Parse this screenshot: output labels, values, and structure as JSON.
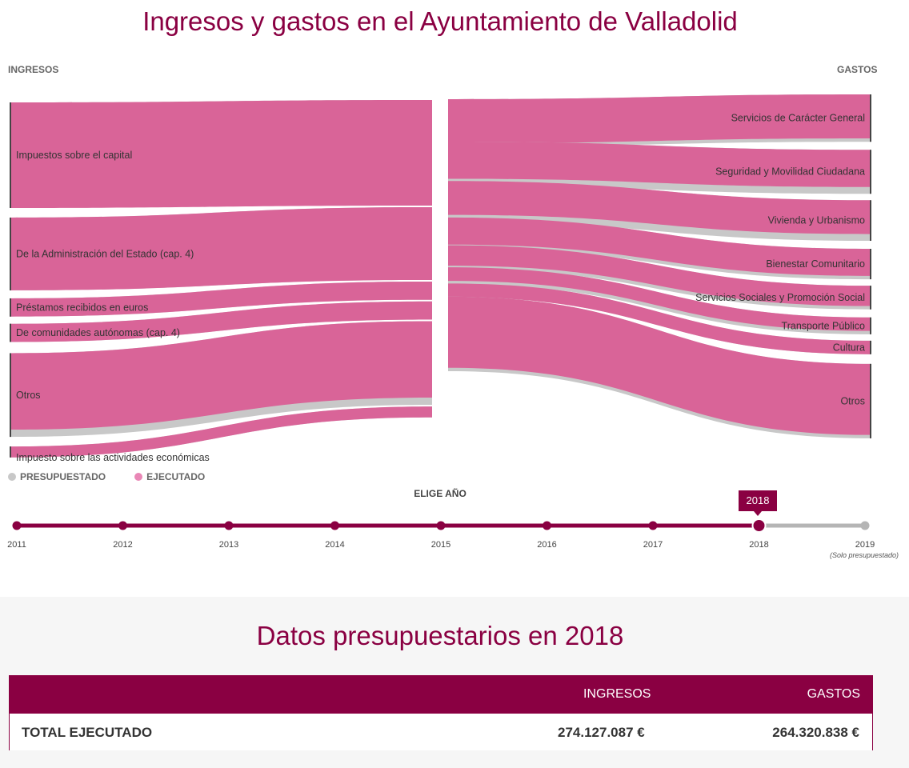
{
  "title": "Ingresos y gastos en el Ayuntamiento de Valladolid",
  "ingresos_label": "INGRESOS",
  "gastos_label": "GASTOS",
  "legend": {
    "budgeted_label": "PRESUPUESTADO",
    "executed_label": "EJECUTADO",
    "budgeted_color": "#c8c8c8",
    "executed_color": "#e987b6"
  },
  "colors": {
    "flow": "#d96498",
    "accent": "#8a0042",
    "budget": "#c8c8c8",
    "timeline_future": "#b5b5b5"
  },
  "chart_data": {
    "type": "sankey",
    "unit": "% del total",
    "ingresos": [
      {
        "label": "Impuestos sobre el capital",
        "executed": 29,
        "budgeted": 28
      },
      {
        "label": "De la Administración del Estado (cap. 4)",
        "executed": 20,
        "budgeted": 20
      },
      {
        "label": "Préstamos recibidos en euros",
        "executed": 5,
        "budgeted": 5
      },
      {
        "label": "De comunidades autónomas (cap. 4)",
        "executed": 5,
        "budgeted": 5
      },
      {
        "label": "Otros",
        "executed": 21,
        "budgeted": 23
      },
      {
        "label": "Impuesto sobre las actividades económicas",
        "executed": 3,
        "budgeted": 3
      }
    ],
    "gastos": [
      {
        "label": "Servicios de Carácter General",
        "executed": 13,
        "budgeted": 14
      },
      {
        "label": "Seguridad y Movilidad Ciudadana",
        "executed": 11,
        "budgeted": 13
      },
      {
        "label": "Vivienda y Urbanismo",
        "executed": 10,
        "budgeted": 12
      },
      {
        "label": "Bienestar Comunitario",
        "executed": 8,
        "budgeted": 9
      },
      {
        "label": "Servicios Sociales y Promoción Social",
        "executed": 6,
        "budgeted": 7
      },
      {
        "label": "Transporte Público",
        "executed": 4,
        "budgeted": 5
      },
      {
        "label": "Cultura",
        "executed": 4,
        "budgeted": 4
      },
      {
        "label": "Otros",
        "executed": 21,
        "budgeted": 22
      }
    ]
  },
  "timeline": {
    "heading": "ELIGE AÑO",
    "years": [
      "2011",
      "2012",
      "2013",
      "2014",
      "2015",
      "2016",
      "2017",
      "2018",
      "2019"
    ],
    "selected": "2018",
    "note_2019": "(Solo presupuestado)"
  },
  "summary": {
    "heading": "Datos presupuestarios en 2018",
    "col_ingresos": "INGRESOS",
    "col_gastos": "GASTOS",
    "row_label": "TOTAL EJECUTADO",
    "ingresos_value": "274.127.087 €",
    "gastos_value": "264.320.838 €"
  }
}
